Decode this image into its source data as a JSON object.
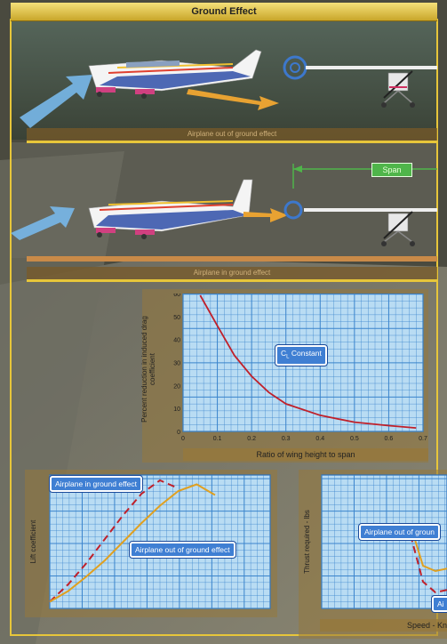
{
  "title": "Ground Effect",
  "labels": {
    "out_of_ground_effect": "Airplane out of ground effect",
    "in_ground_effect": "Airplane in ground effect",
    "span": "Span",
    "cl_constant_prefix": "C",
    "cl_constant_sub": "L",
    "cl_constant_suffix": " Constant"
  },
  "colors": {
    "title_bar": "#e9cc4e",
    "callout_blue": "#3f7fd3",
    "span_green": "#4fb54a",
    "curve_red": "#c0202a",
    "curve_orange": "#e0a020"
  },
  "chart_data": [
    {
      "type": "line",
      "ylabel": "Percent reduction in induced drag coefficient",
      "xlabel": "Ratio of wing height to span",
      "xlim": [
        0,
        0.7
      ],
      "ylim": [
        0,
        60
      ],
      "xticks": [
        "0",
        "0.1",
        "0.2",
        "0.3",
        "0.4",
        "0.5",
        "0.6",
        "0.7"
      ],
      "yticks": [
        "0",
        "10",
        "20",
        "30",
        "40",
        "50",
        "60"
      ],
      "annotation": "CL Constant",
      "series": [
        {
          "x": [
            0.05,
            0.1,
            0.15,
            0.2,
            0.25,
            0.3,
            0.4,
            0.5,
            0.6,
            0.68
          ],
          "y": [
            64,
            46,
            33,
            24,
            17,
            12,
            7,
            4,
            2.5,
            1.5
          ]
        }
      ]
    },
    {
      "type": "line",
      "ylabel": "Lift coefficient",
      "annotations": [
        "Airplane in ground effect",
        "Airplane out of ground effect"
      ],
      "series": [
        {
          "name": "Airplane in ground effect",
          "style": "dashed",
          "x": [
            0,
            1,
            2,
            3,
            4,
            5,
            6,
            7
          ],
          "y": [
            0.05,
            0.18,
            0.34,
            0.52,
            0.7,
            0.86,
            0.96,
            0.9
          ]
        },
        {
          "name": "Airplane out of ground effect",
          "style": "solid",
          "x": [
            0,
            1,
            2,
            3,
            4,
            5,
            6,
            7,
            8,
            9
          ],
          "y": [
            0.05,
            0.13,
            0.24,
            0.36,
            0.5,
            0.64,
            0.77,
            0.88,
            0.93,
            0.85
          ]
        }
      ]
    },
    {
      "type": "line",
      "ylabel": "Thrust required - lbs",
      "xlabel": "Speed - Kn",
      "annotations": [
        "Airplane out of groun",
        "Ai"
      ],
      "series": [
        {
          "style": "dashed",
          "x": [
            0,
            1,
            2,
            3
          ],
          "y": [
            0.55,
            0.2,
            0.12,
            0.14
          ]
        },
        {
          "style": "solid",
          "x": [
            0,
            1,
            2,
            3
          ],
          "y": [
            0.62,
            0.32,
            0.28,
            0.3
          ]
        }
      ]
    }
  ]
}
